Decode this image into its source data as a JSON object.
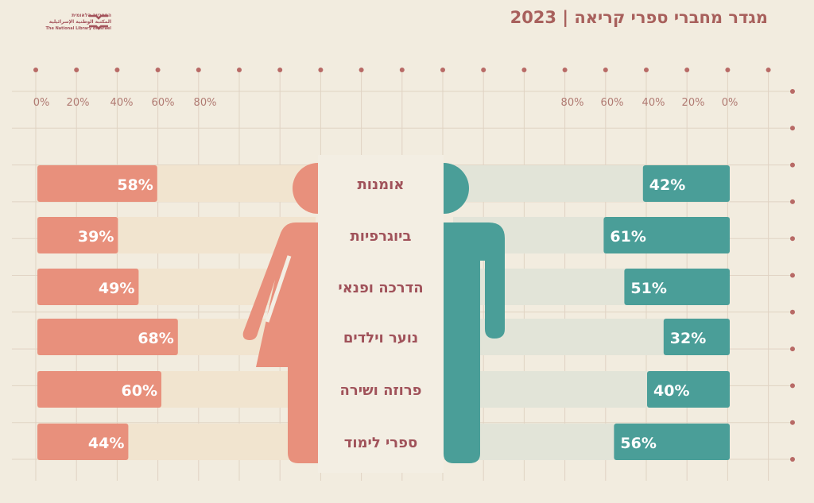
{
  "logo": {
    "hebrew": "הספרייה הלאומית",
    "arabic": "المكتبة الوطنية الإسرائيلية",
    "english": "The National Library of Israel"
  },
  "title": "מגדר מחברי ספרי קריאה | 2023",
  "colors": {
    "female": "#E8907C",
    "male": "#4A9E98",
    "text": "#A0525A",
    "background": "#F2ECDF"
  },
  "chart_data": {
    "type": "bar",
    "orientation": "horizontal-diverging",
    "title": "מגדר מחברי ספרי קריאה | 2023",
    "categories": [
      "אומנות",
      "ביוגרפיות",
      "הדרכה ופנאי",
      "נוער וילדים",
      "פרוזה ושירה",
      "ספרי לימוד"
    ],
    "series": [
      {
        "icon": "female-figure",
        "side": "left",
        "values": [
          58,
          39,
          49,
          68,
          60,
          44
        ]
      },
      {
        "icon": "male-figure",
        "side": "right",
        "values": [
          42,
          61,
          51,
          32,
          40,
          56
        ]
      }
    ],
    "left_ticks": [
      "0%",
      "20%",
      "40%",
      "60%",
      "80%"
    ],
    "right_ticks": [
      "80%",
      "60%",
      "40%",
      "20%",
      "0%"
    ],
    "xlim": [
      0,
      100
    ],
    "grid": true
  }
}
